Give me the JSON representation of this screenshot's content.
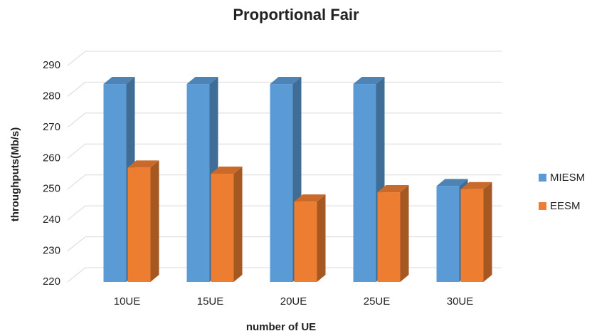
{
  "chart_data": {
    "type": "bar3d",
    "title": "Proportional Fair",
    "x_label": "number of UE",
    "y_label": "throughputs(Mb/s)",
    "categories": [
      "10UE",
      "15UE",
      "20UE",
      "25UE",
      "30UE"
    ],
    "series": [
      {
        "name": "MIESM",
        "color": "#5b9bd5",
        "values": [
          284,
          284,
          284,
          284,
          251
        ]
      },
      {
        "name": "EESM",
        "color": "#ed7d31",
        "values": [
          257,
          255,
          246,
          249,
          250
        ]
      }
    ],
    "ylim": [
      220,
      290
    ],
    "yticks": [
      220,
      230,
      240,
      250,
      260,
      270,
      280,
      290
    ],
    "grid": true,
    "legend": "right"
  }
}
